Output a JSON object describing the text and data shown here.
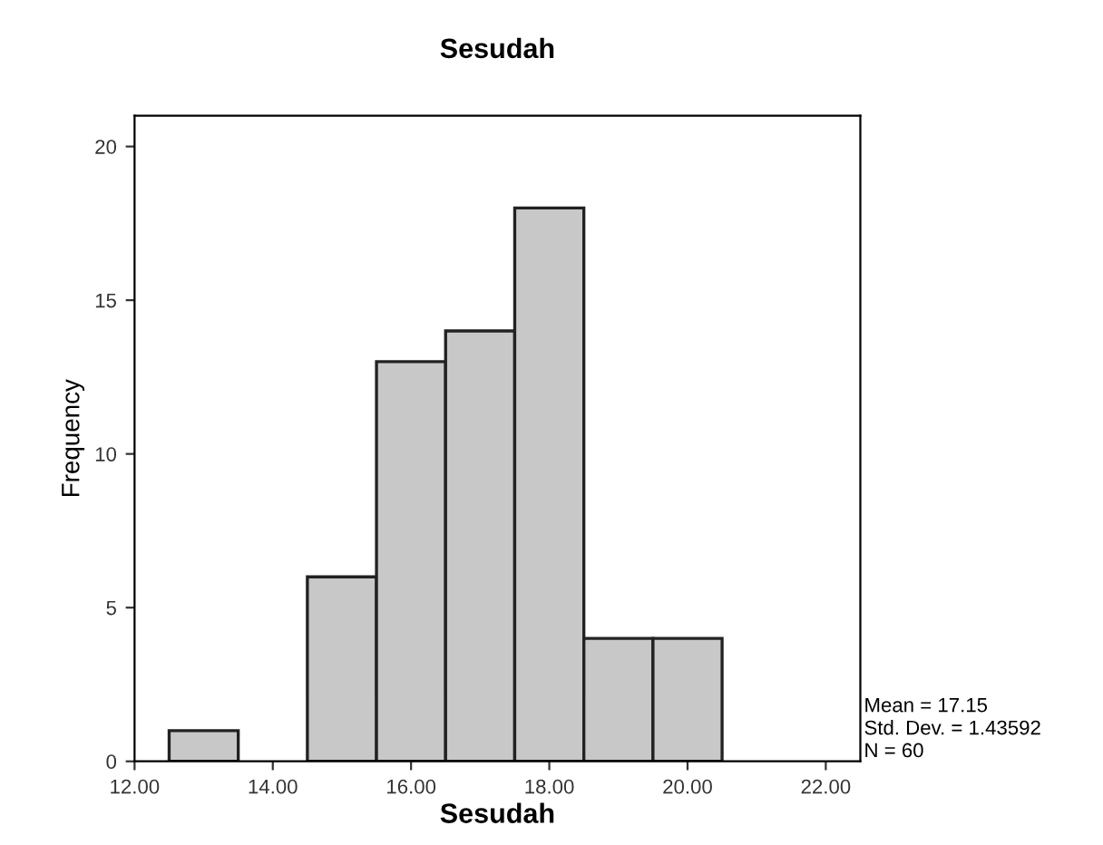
{
  "chart_data": {
    "type": "histogram",
    "title": "Sesudah",
    "xlabel": "Sesudah",
    "ylabel": "Frequency",
    "bins": [
      12.5,
      13.5,
      14.5,
      15.5,
      16.5,
      17.5,
      18.5,
      19.5,
      20.5
    ],
    "values": [
      1,
      0,
      6,
      13,
      14,
      18,
      4,
      4
    ],
    "color": "#c8c8c8",
    "xlim": [
      12,
      22.5
    ],
    "xticks": [
      {
        "value": 12,
        "label": "12.00"
      },
      {
        "value": 14,
        "label": "14.00"
      },
      {
        "value": 16,
        "label": "16.00"
      },
      {
        "value": 18,
        "label": "18.00"
      },
      {
        "value": 20,
        "label": "20.00"
      },
      {
        "value": 22,
        "label": "22.00"
      }
    ],
    "ylim": [
      0,
      21
    ],
    "yticks": [
      0,
      5,
      10,
      15,
      20
    ],
    "grid": false,
    "legend": false,
    "annotations": [
      "Mean = 17.15",
      "Std. Dev. = 1.43592",
      "N = 60"
    ]
  }
}
